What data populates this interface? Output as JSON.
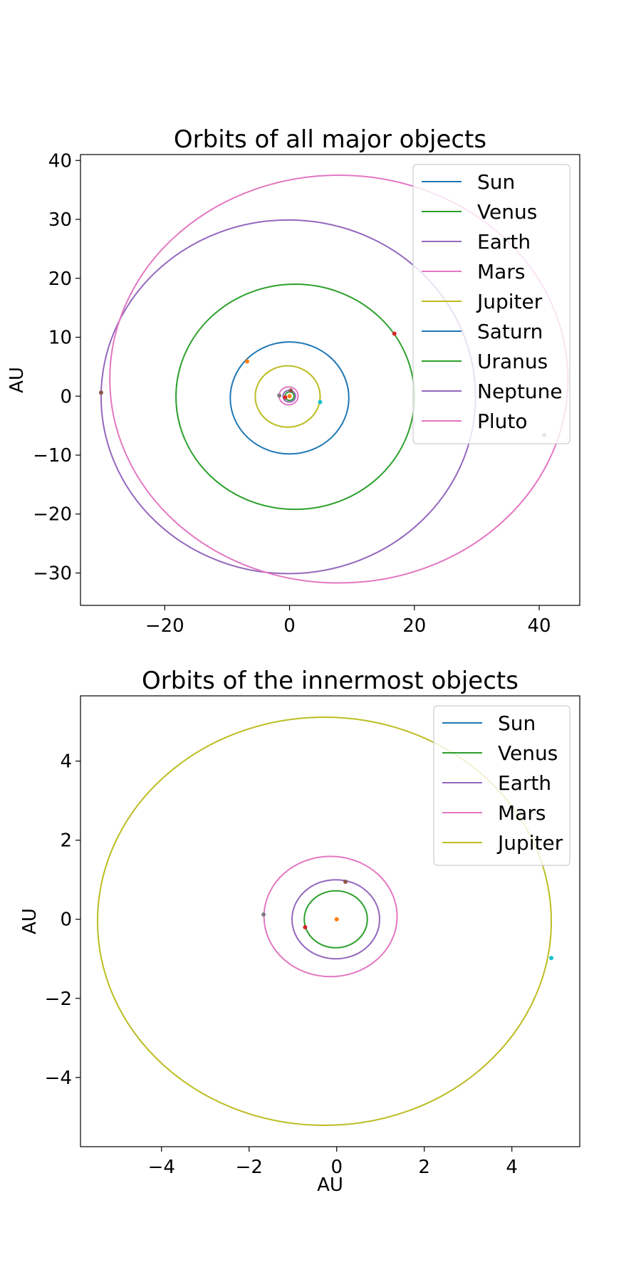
{
  "chart_data": [
    {
      "type": "line",
      "title": "Orbits of all major objects",
      "xlabel": "",
      "ylabel": "AU",
      "xlim": [
        -33.5,
        46.5
      ],
      "ylim": [
        -35.5,
        41.0
      ],
      "xticks": [
        -20,
        0,
        20,
        40
      ],
      "xtick_labels": [
        "−20",
        "0",
        "20",
        "40"
      ],
      "yticks": [
        -30,
        -20,
        -10,
        0,
        10,
        20,
        30,
        40
      ],
      "ytick_labels": [
        "−30",
        "−20",
        "−10",
        "0",
        "10",
        "20",
        "30",
        "40"
      ],
      "legend_position": "upper-right",
      "series": [
        {
          "name": "Sun",
          "color": "#1f77b4",
          "cx": 0,
          "cy": 0,
          "rx": 0,
          "ry": 0
        },
        {
          "name": "Venus",
          "color": "#2ca02c",
          "cx": 0.0,
          "cy": 0.0,
          "rx": 0.72,
          "ry": 0.72
        },
        {
          "name": "Earth",
          "color": "#9467bd",
          "cx": -0.05,
          "cy": 0.0,
          "rx": 1.0,
          "ry": 1.0
        },
        {
          "name": "Mars",
          "color": "#e377c2",
          "cx": -0.15,
          "cy": 0.05,
          "rx": 1.52,
          "ry": 1.52
        },
        {
          "name": "Jupiter",
          "color": "#bcbd22",
          "cx": -0.3,
          "cy": -0.05,
          "rx": 5.2,
          "ry": 5.2
        },
        {
          "name": "Saturn",
          "color": "#1f77b4",
          "cx": 0.0,
          "cy": -0.3,
          "rx": 9.5,
          "ry": 9.5
        },
        {
          "name": "Uranus",
          "color": "#2ca02c",
          "cx": 0.9,
          "cy": -0.1,
          "rx": 19.1,
          "ry": 19.1
        },
        {
          "name": "Neptune",
          "color": "#9467bd",
          "cx": -0.2,
          "cy": -0.1,
          "rx": 30.0,
          "ry": 30.0
        },
        {
          "name": "Pluto",
          "color": "#e377c2",
          "cx": 7.9,
          "cy": 2.9,
          "rx": 36.7,
          "ry": 34.6
        }
      ],
      "markers": [
        {
          "name": "Sun",
          "x": 0.0,
          "y": 0.0,
          "color": "#ff7f0e"
        },
        {
          "name": "Venus",
          "x": -0.7,
          "y": -0.2,
          "color": "#d62728"
        },
        {
          "name": "Earth",
          "x": 0.2,
          "y": 0.95,
          "color": "#8c564b"
        },
        {
          "name": "Mars",
          "x": -1.65,
          "y": 0.1,
          "color": "#7f7f7f"
        },
        {
          "name": "Jupiter",
          "x": 4.9,
          "y": -1.0,
          "color": "#17becf"
        },
        {
          "name": "Saturn",
          "x": -6.8,
          "y": 5.9,
          "color": "#ff7f0e"
        },
        {
          "name": "Uranus",
          "x": 16.8,
          "y": 10.6,
          "color": "#d62728"
        },
        {
          "name": "Neptune",
          "x": -30.2,
          "y": 0.6,
          "color": "#8c564b"
        },
        {
          "name": "Pluto",
          "x": 40.8,
          "y": -6.6,
          "color": "#7f7f7f"
        }
      ]
    },
    {
      "type": "line",
      "title": "Orbits of the innermost objects",
      "xlabel": "AU",
      "ylabel": "AU",
      "xlim": [
        -5.85,
        5.55
      ],
      "ylim": [
        -5.75,
        5.65
      ],
      "xticks": [
        -4,
        -2,
        0,
        2,
        4
      ],
      "xtick_labels": [
        "−4",
        "−2",
        "0",
        "2",
        "4"
      ],
      "yticks": [
        -4,
        -2,
        0,
        2,
        4
      ],
      "ytick_labels": [
        "−4",
        "−2",
        "0",
        "2",
        "4"
      ],
      "legend_position": "upper-right",
      "series": [
        {
          "name": "Sun",
          "color": "#1f77b4",
          "cx": 0,
          "cy": 0,
          "rx": 0,
          "ry": 0
        },
        {
          "name": "Venus",
          "color": "#2ca02c",
          "cx": -0.02,
          "cy": 0.0,
          "rx": 0.72,
          "ry": 0.72
        },
        {
          "name": "Earth",
          "color": "#9467bd",
          "cx": -0.02,
          "cy": 0.0,
          "rx": 1.0,
          "ry": 1.0
        },
        {
          "name": "Mars",
          "color": "#e377c2",
          "cx": -0.14,
          "cy": 0.07,
          "rx": 1.52,
          "ry": 1.52
        },
        {
          "name": "Jupiter",
          "color": "#bcbd22",
          "cx": -0.28,
          "cy": -0.05,
          "rx": 5.18,
          "ry": 5.16
        }
      ],
      "markers": [
        {
          "name": "Sun",
          "x": 0.0,
          "y": 0.0,
          "color": "#ff7f0e"
        },
        {
          "name": "Venus",
          "x": -0.72,
          "y": -0.2,
          "color": "#d62728"
        },
        {
          "name": "Earth",
          "x": 0.2,
          "y": 0.95,
          "color": "#8c564b"
        },
        {
          "name": "Mars",
          "x": -1.67,
          "y": 0.12,
          "color": "#7f7f7f"
        },
        {
          "name": "Jupiter",
          "x": 4.9,
          "y": -0.98,
          "color": "#17becf"
        }
      ]
    }
  ]
}
